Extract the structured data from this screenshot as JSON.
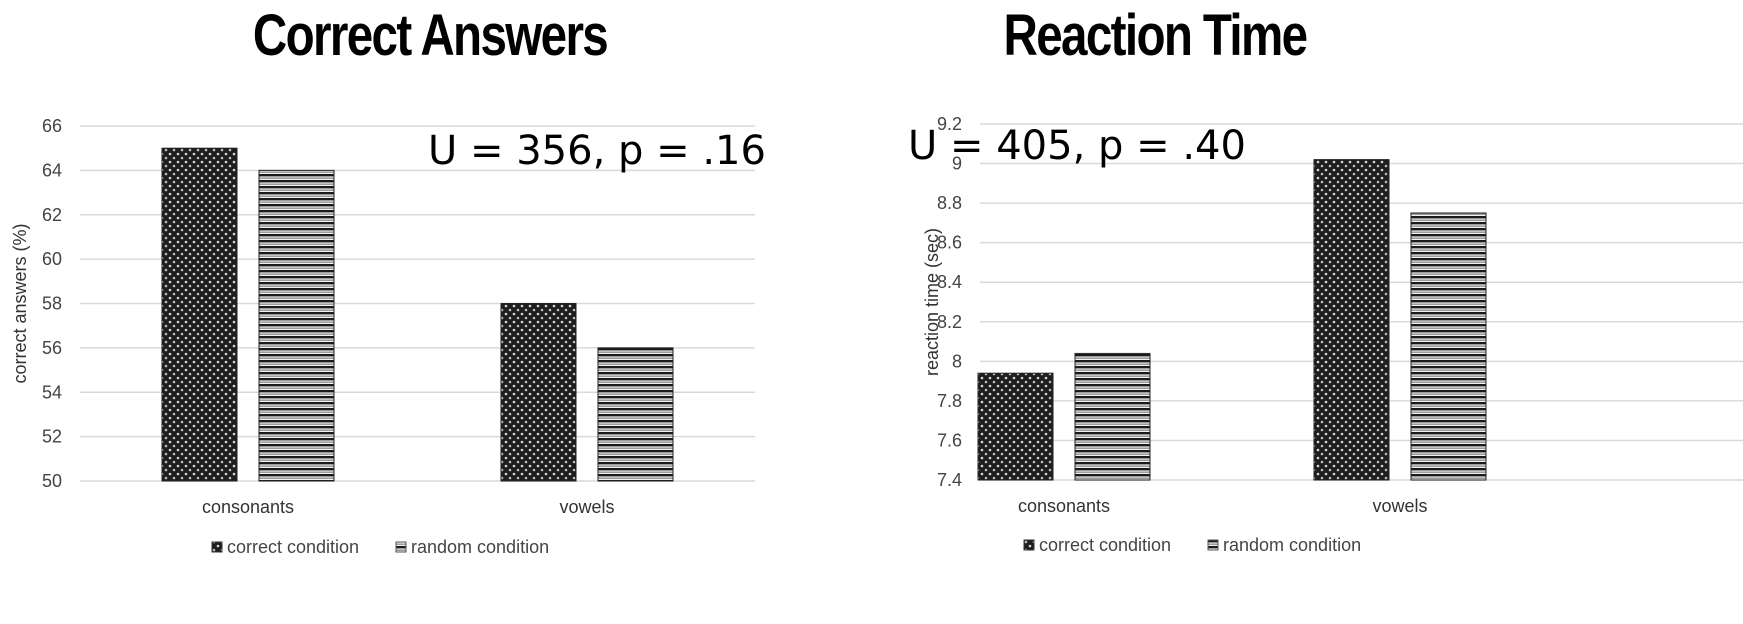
{
  "chart_data": [
    {
      "type": "bar",
      "title": "Correct Answers",
      "annotation": "U = 356, p = .16",
      "ylabel": "correct answers (%)",
      "xlabel": "",
      "categories": [
        "consonants",
        "vowels"
      ],
      "series": [
        {
          "name": "correct condition",
          "values": [
            65,
            58
          ]
        },
        {
          "name": "random condition",
          "values": [
            64,
            56
          ]
        }
      ],
      "ylim": [
        50,
        66
      ],
      "yticks": [
        "50",
        "52",
        "54",
        "56",
        "58",
        "60",
        "62",
        "64",
        "66"
      ],
      "grid": true,
      "legend_position": "bottom"
    },
    {
      "type": "bar",
      "title": "Reaction Time",
      "annotation": "U = 405, p = .40",
      "ylabel": "reaction time (sec)",
      "xlabel": "",
      "categories": [
        "consonants",
        "vowels"
      ],
      "series": [
        {
          "name": "correct condition",
          "values": [
            7.94,
            9.02
          ]
        },
        {
          "name": "random condition",
          "values": [
            8.04,
            8.75
          ]
        }
      ],
      "ylim": [
        7.4,
        9.2
      ],
      "yticks": [
        "7.4",
        "7.6",
        "7.8",
        "8",
        "8.2",
        "8.4",
        "8.6",
        "8.8",
        "9",
        "9.2"
      ],
      "grid": true,
      "legend_position": "bottom"
    }
  ]
}
